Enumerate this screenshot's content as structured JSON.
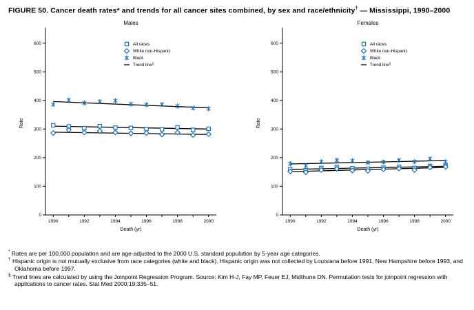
{
  "figure": {
    "title_main": "FIGURE 50. Cancer death rates* and trends for all cancer sites combined, by sex and race/ethnicity",
    "title_sup": "†",
    "title_tail": " — Mississippi, 1990–2000"
  },
  "colors": {
    "marker": "#1d6fb8",
    "trend": "#000000",
    "axis": "#000000"
  },
  "chart_data": [
    {
      "type": "scatter",
      "title": "Males",
      "xlabel": "Death (yr)",
      "ylabel": "Rate",
      "xlim": [
        1989.5,
        2000.5
      ],
      "ylim": [
        0,
        640
      ],
      "yticks": [
        0,
        100,
        200,
        300,
        400,
        500,
        600
      ],
      "xticks": [
        1990,
        1992,
        1994,
        1996,
        1998,
        2000
      ],
      "x": [
        1990,
        1991,
        1992,
        1993,
        1994,
        1995,
        1996,
        1997,
        1998,
        1999,
        2000
      ],
      "grid": false,
      "legend_position": "upper-center-right",
      "trend_label": "Trend line",
      "trend_sup": "§",
      "series": [
        {
          "name": "All races",
          "marker": "square",
          "values": [
            313,
            309,
            303,
            310,
            305,
            304,
            300,
            299,
            306,
            297,
            301
          ],
          "trend": [
            310,
            300
          ]
        },
        {
          "name": "White non-Hispanic",
          "marker": "diamond",
          "values": [
            286,
            297,
            288,
            293,
            288,
            285,
            286,
            281,
            288,
            279,
            282
          ],
          "trend": [
            289,
            281
          ]
        },
        {
          "name": "Black",
          "marker": "asterisk",
          "values": [
            386,
            401,
            391,
            396,
            399,
            387,
            385,
            386,
            380,
            373,
            371
          ],
          "trend": [
            396,
            374
          ]
        }
      ]
    },
    {
      "type": "scatter",
      "title": "Females",
      "xlabel": "Death (yr)",
      "ylabel": "Rate",
      "xlim": [
        1989.5,
        2000.5
      ],
      "ylim": [
        0,
        640
      ],
      "yticks": [
        0,
        100,
        200,
        300,
        400,
        500,
        600
      ],
      "xticks": [
        1990,
        1992,
        1994,
        1996,
        1998,
        2000
      ],
      "x": [
        1990,
        1991,
        1992,
        1993,
        1994,
        1995,
        1996,
        1997,
        1998,
        1999,
        2000
      ],
      "grid": false,
      "legend_position": "upper-center-right",
      "trend_label": "Trend line",
      "trend_sup": "§",
      "series": [
        {
          "name": "All races",
          "marker": "square",
          "values": [
            160,
            156,
            164,
            167,
            163,
            161,
            165,
            168,
            164,
            171,
            172
          ],
          "trend": [
            159,
            170
          ]
        },
        {
          "name": "White non-Hispanic",
          "marker": "diamond",
          "values": [
            152,
            149,
            157,
            161,
            155,
            154,
            159,
            162,
            157,
            166,
            168
          ],
          "trend": [
            151,
            166
          ]
        },
        {
          "name": "Black",
          "marker": "asterisk",
          "values": [
            179,
            172,
            186,
            191,
            189,
            183,
            185,
            191,
            186,
            196,
            186
          ],
          "trend": [
            178,
            190
          ]
        }
      ]
    }
  ],
  "footnotes": [
    {
      "symbol": "*",
      "text": " Rates are per 100,000 population and are age-adjusted to the 2000 U.S. standard population by 5-year age categories."
    },
    {
      "symbol": "†",
      "text": " Hispanic origin is not mutually exclusive from race categories (white and black). Hispanic origin was not collected by Louisiana before 1991, New Hampshire before 1993, and Oklahoma before 1997."
    },
    {
      "symbol": "§",
      "text": " Trend lines are calculated by using the Joinpoint Regression Program. Source: Kim H-J, Fay MP, Feuer EJ, Midthune DN. Permutation tests for joinpoint regression with applications to cancer rates. Stat Med 2000;19:335–51."
    }
  ]
}
